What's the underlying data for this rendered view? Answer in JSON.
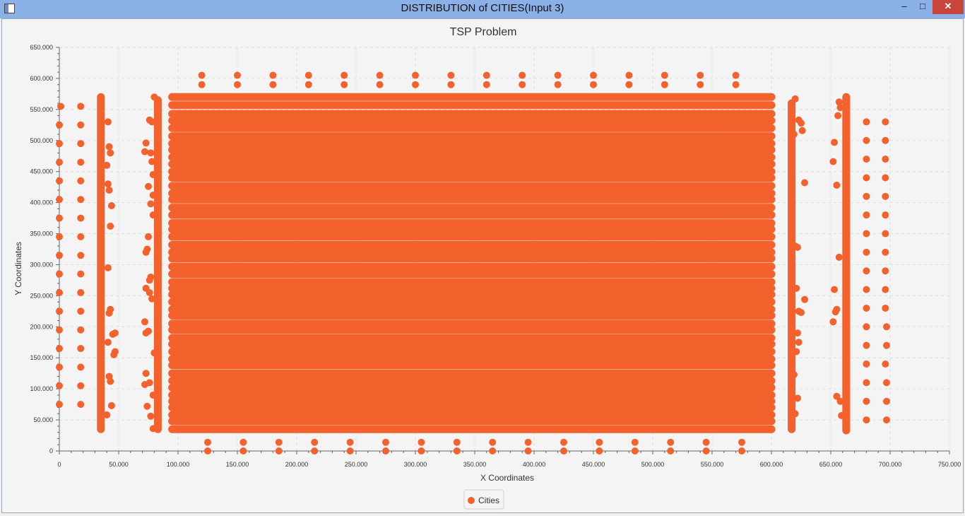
{
  "window": {
    "title": "DISTRIBUTION of CITIES(Input 3)",
    "min_glyph": "–",
    "max_glyph": "□",
    "close_glyph": "✕"
  },
  "colors": {
    "series": "#f3622d",
    "grid": "#dddddd",
    "axis": "#666666",
    "text": "#333333"
  },
  "chart_data": {
    "type": "scatter",
    "title": "TSP Problem",
    "xlabel": "X Coordinates",
    "ylabel": "Y Coordinates",
    "xlim": [
      0,
      750000
    ],
    "ylim": [
      0,
      650000
    ],
    "x_ticks": [
      0,
      50000,
      100000,
      150000,
      200000,
      250000,
      300000,
      350000,
      400000,
      450000,
      500000,
      550000,
      600000,
      650000,
      700000,
      750000
    ],
    "x_tick_labels": [
      "0",
      "50.000",
      "100.000",
      "150.000",
      "200.000",
      "250.000",
      "300.000",
      "350.000",
      "400.000",
      "450.000",
      "500.000",
      "550.000",
      "600.000",
      "650.000",
      "700.000",
      "750.000"
    ],
    "y_ticks": [
      0,
      50000,
      100000,
      150000,
      200000,
      250000,
      300000,
      350000,
      400000,
      450000,
      500000,
      550000,
      600000,
      650000
    ],
    "y_tick_labels": [
      "0",
      "50.000",
      "100.000",
      "150.000",
      "200.000",
      "250.000",
      "300.000",
      "350.000",
      "400.000",
      "450.000",
      "500.000",
      "550.000",
      "600.000",
      "650.000"
    ],
    "grid": true,
    "legend_position": "bottom",
    "series": [
      {
        "name": "Cities",
        "points": [
          [
            1200,
            555000
          ],
          [
            18000,
            555000
          ],
          [
            0,
            525000
          ],
          [
            0,
            495000
          ],
          [
            0,
            465000
          ],
          [
            0,
            435000
          ],
          [
            0,
            405000
          ],
          [
            0,
            375000
          ],
          [
            0,
            345000
          ],
          [
            0,
            315000
          ],
          [
            0,
            285000
          ],
          [
            0,
            255000
          ],
          [
            0,
            225000
          ],
          [
            0,
            195000
          ],
          [
            0,
            165000
          ],
          [
            0,
            135000
          ],
          [
            0,
            105000
          ],
          [
            0,
            75000
          ],
          [
            18000,
            525000
          ],
          [
            18000,
            495000
          ],
          [
            18000,
            465000
          ],
          [
            18000,
            435000
          ],
          [
            18000,
            405000
          ],
          [
            18000,
            375000
          ],
          [
            18000,
            345000
          ],
          [
            18000,
            315000
          ],
          [
            18000,
            285000
          ],
          [
            18000,
            255000
          ],
          [
            18000,
            225000
          ],
          [
            18000,
            195000
          ],
          [
            18000,
            165000
          ],
          [
            18000,
            135000
          ],
          [
            18000,
            105000
          ],
          [
            18000,
            75000
          ],
          [
            41000,
            530000
          ],
          [
            42000,
            490000
          ],
          [
            43000,
            480000
          ],
          [
            40000,
            460000
          ],
          [
            41000,
            430000
          ],
          [
            42000,
            420000
          ],
          [
            44000,
            395000
          ],
          [
            43000,
            362000
          ],
          [
            41000,
            295000
          ],
          [
            43000,
            228000
          ],
          [
            42000,
            222000
          ],
          [
            45000,
            188000
          ],
          [
            47000,
            190000
          ],
          [
            41000,
            175000
          ],
          [
            46000,
            155000
          ],
          [
            47000,
            160000
          ],
          [
            42000,
            120000
          ],
          [
            43000,
            112000
          ],
          [
            44000,
            73000
          ],
          [
            40000,
            58000
          ],
          [
            80000,
            570000
          ],
          [
            76000,
            533000
          ],
          [
            78000,
            530000
          ],
          [
            73000,
            496000
          ],
          [
            72000,
            482000
          ],
          [
            77000,
            480000
          ],
          [
            78000,
            466000
          ],
          [
            79000,
            445000
          ],
          [
            75000,
            426000
          ],
          [
            79000,
            412000
          ],
          [
            77000,
            398000
          ],
          [
            79000,
            380000
          ],
          [
            73000,
            320000
          ],
          [
            74000,
            325000
          ],
          [
            75000,
            345000
          ],
          [
            76000,
            275000
          ],
          [
            77000,
            280000
          ],
          [
            73000,
            262000
          ],
          [
            76000,
            255000
          ],
          [
            78000,
            245000
          ],
          [
            72000,
            208000
          ],
          [
            73000,
            190000
          ],
          [
            75000,
            193000
          ],
          [
            80000,
            158000
          ],
          [
            73000,
            125000
          ],
          [
            72000,
            107000
          ],
          [
            76000,
            110000
          ],
          [
            79000,
            90000
          ],
          [
            74000,
            72000
          ],
          [
            77000,
            56000
          ],
          [
            79000,
            36000
          ],
          [
            120000,
            605000
          ],
          [
            150000,
            605000
          ],
          [
            180000,
            605000
          ],
          [
            210000,
            605000
          ],
          [
            240000,
            605000
          ],
          [
            270000,
            605000
          ],
          [
            300000,
            605000
          ],
          [
            330000,
            605000
          ],
          [
            360000,
            605000
          ],
          [
            390000,
            605000
          ],
          [
            420000,
            605000
          ],
          [
            450000,
            605000
          ],
          [
            480000,
            605000
          ],
          [
            510000,
            605000
          ],
          [
            540000,
            605000
          ],
          [
            570000,
            605000
          ],
          [
            120000,
            590000
          ],
          [
            150000,
            590000
          ],
          [
            180000,
            590000
          ],
          [
            210000,
            590000
          ],
          [
            240000,
            590000
          ],
          [
            270000,
            590000
          ],
          [
            300000,
            590000
          ],
          [
            330000,
            590000
          ],
          [
            360000,
            590000
          ],
          [
            390000,
            590000
          ],
          [
            420000,
            590000
          ],
          [
            450000,
            590000
          ],
          [
            480000,
            590000
          ],
          [
            510000,
            590000
          ],
          [
            540000,
            590000
          ],
          [
            570000,
            590000
          ],
          [
            125000,
            14000
          ],
          [
            155000,
            14000
          ],
          [
            185000,
            14000
          ],
          [
            215000,
            14000
          ],
          [
            245000,
            14000
          ],
          [
            275000,
            14000
          ],
          [
            305000,
            14000
          ],
          [
            335000,
            14000
          ],
          [
            365000,
            14000
          ],
          [
            395000,
            14000
          ],
          [
            425000,
            14000
          ],
          [
            455000,
            14000
          ],
          [
            485000,
            14000
          ],
          [
            515000,
            14000
          ],
          [
            545000,
            14000
          ],
          [
            575000,
            14000
          ],
          [
            125000,
            0
          ],
          [
            155000,
            0
          ],
          [
            185000,
            0
          ],
          [
            215000,
            0
          ],
          [
            245000,
            0
          ],
          [
            275000,
            0
          ],
          [
            305000,
            0
          ],
          [
            335000,
            0
          ],
          [
            365000,
            0
          ],
          [
            395000,
            0
          ],
          [
            425000,
            0
          ],
          [
            455000,
            0
          ],
          [
            485000,
            0
          ],
          [
            515000,
            0
          ],
          [
            545000,
            0
          ],
          [
            575000,
            0
          ],
          [
            620000,
            567000
          ],
          [
            623000,
            533000
          ],
          [
            625000,
            528000
          ],
          [
            626000,
            516000
          ],
          [
            619000,
            510000
          ],
          [
            628000,
            432000
          ],
          [
            620000,
            330000
          ],
          [
            622000,
            328000
          ],
          [
            621000,
            262000
          ],
          [
            623000,
            225000
          ],
          [
            625000,
            223000
          ],
          [
            628000,
            244000
          ],
          [
            622000,
            190000
          ],
          [
            623000,
            175000
          ],
          [
            621000,
            160000
          ],
          [
            619000,
            123000
          ],
          [
            622000,
            85000
          ],
          [
            620000,
            60000
          ],
          [
            653000,
            497000
          ],
          [
            652000,
            466000
          ],
          [
            655000,
            428000
          ],
          [
            657000,
            312000
          ],
          [
            653000,
            260000
          ],
          [
            655000,
            228000
          ],
          [
            654000,
            224000
          ],
          [
            652000,
            208000
          ],
          [
            655000,
            88000
          ],
          [
            658000,
            80000
          ],
          [
            659000,
            57000
          ],
          [
            656000,
            540000
          ],
          [
            657000,
            562000
          ],
          [
            658000,
            553000
          ],
          [
            680000,
            530000
          ],
          [
            680000,
            500000
          ],
          [
            680000,
            470000
          ],
          [
            680000,
            440000
          ],
          [
            680000,
            410000
          ],
          [
            680000,
            380000
          ],
          [
            680000,
            350000
          ],
          [
            680000,
            320000
          ],
          [
            680000,
            290000
          ],
          [
            680000,
            260000
          ],
          [
            680000,
            230000
          ],
          [
            680000,
            200000
          ],
          [
            680000,
            170000
          ],
          [
            680000,
            140000
          ],
          [
            680000,
            110000
          ],
          [
            680000,
            80000
          ],
          [
            680000,
            50000
          ],
          [
            696000,
            530000
          ],
          [
            696000,
            500000
          ],
          [
            696000,
            470000
          ],
          [
            696000,
            440000
          ],
          [
            696000,
            410000
          ],
          [
            696000,
            380000
          ],
          [
            696000,
            350000
          ],
          [
            696000,
            320000
          ],
          [
            696000,
            290000
          ],
          [
            696000,
            260000
          ],
          [
            696000,
            230000
          ],
          [
            697000,
            200000
          ],
          [
            697000,
            170000
          ],
          [
            696000,
            140000
          ],
          [
            697000,
            110000
          ],
          [
            697000,
            80000
          ],
          [
            697000,
            50000
          ]
        ],
        "columns": [
          {
            "x": 35000,
            "y_range": [
              35000,
              570000
            ]
          },
          {
            "x": 83000,
            "y_range": [
              35000,
              565000
            ]
          },
          {
            "x": 617000,
            "y_range": [
              35000,
              560000
            ]
          },
          {
            "x": 663000,
            "y_range": [
              33000,
              570000
            ]
          }
        ],
        "rows": {
          "x_range": [
            95000,
            600000
          ],
          "y_values": [
            35000,
            48000,
            58000,
            70000,
            80000,
            90000,
            102000,
            113000,
            125000,
            138000,
            148000,
            160000,
            172000,
            182000,
            195000,
            205000,
            218000,
            228000,
            240000,
            252000,
            262000,
            272000,
            285000,
            297000,
            310000,
            320000,
            332000,
            345000,
            357000,
            367000,
            380000,
            392000,
            405000,
            415000,
            427000,
            440000,
            450000,
            462000,
            473000,
            485000,
            495000,
            507000,
            520000,
            532000,
            543000,
            557000,
            570000
          ]
        }
      }
    ]
  }
}
